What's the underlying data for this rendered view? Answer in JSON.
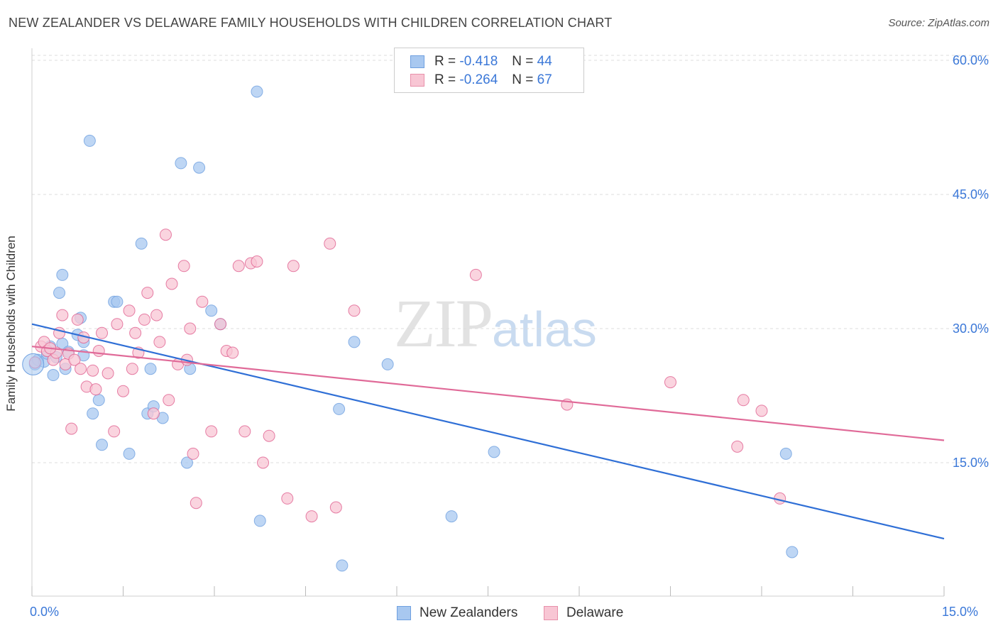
{
  "title": "NEW ZEALANDER VS DELAWARE FAMILY HOUSEHOLDS WITH CHILDREN CORRELATION CHART",
  "source": "Source: ZipAtlas.com",
  "watermark": {
    "zip": "ZIP",
    "atlas": "atlas"
  },
  "legend": {
    "rows": [
      {
        "r_label": "R = ",
        "r_value": "-0.418",
        "n_label": "N = ",
        "n_value": "44",
        "color": "#a8c8f0",
        "border": "#6fa0e0"
      },
      {
        "r_label": "R = ",
        "r_value": "-0.264",
        "n_label": "N = ",
        "n_value": "67",
        "color": "#f8c6d4",
        "border": "#e890aa"
      }
    ]
  },
  "bottom_legend": [
    {
      "label": "New Zealanders",
      "color": "#a8c8f0",
      "border": "#6fa0e0"
    },
    {
      "label": "Delaware",
      "color": "#f8c6d4",
      "border": "#e890aa"
    }
  ],
  "x_tick_labels": {
    "left": "0.0%",
    "right": "15.0%"
  },
  "chart_data": {
    "type": "scatter",
    "title": "NEW ZEALANDER VS DELAWARE FAMILY HOUSEHOLDS WITH CHILDREN CORRELATION CHART",
    "xlabel": "",
    "ylabel": "Family Households with Children",
    "xlim": [
      0,
      15
    ],
    "ylim": [
      0,
      63
    ],
    "y_ticks": [
      15,
      30,
      45,
      60
    ],
    "y_tick_labels": [
      "15.0%",
      "30.0%",
      "45.0%",
      "60.0%"
    ],
    "grid": "horizontal dashed",
    "legend_position": "top-center",
    "series": [
      {
        "name": "New Zealanders",
        "color": "#6fa0e0",
        "fill": "#a8c8f0",
        "trend": {
          "x": [
            0,
            15
          ],
          "y": [
            30.5,
            6.5
          ]
        },
        "points": [
          [
            0.05,
            26.0
          ],
          [
            0.1,
            26.5
          ],
          [
            0.2,
            26.3
          ],
          [
            0.25,
            27.2
          ],
          [
            0.3,
            28.0
          ],
          [
            0.35,
            24.8
          ],
          [
            0.4,
            26.8
          ],
          [
            0.5,
            28.3
          ],
          [
            0.55,
            25.5
          ],
          [
            0.6,
            27.4
          ],
          [
            0.45,
            34.0
          ],
          [
            0.5,
            36.0
          ],
          [
            0.75,
            29.3
          ],
          [
            0.8,
            31.2
          ],
          [
            0.85,
            28.5
          ],
          [
            0.85,
            27.0
          ],
          [
            1.0,
            20.5
          ],
          [
            1.1,
            22.0
          ],
          [
            1.15,
            17.0
          ],
          [
            1.35,
            33.0
          ],
          [
            1.4,
            33.0
          ],
          [
            1.6,
            16.0
          ],
          [
            1.8,
            39.5
          ],
          [
            1.9,
            20.5
          ],
          [
            1.95,
            25.5
          ],
          [
            2.0,
            21.3
          ],
          [
            2.15,
            20.0
          ],
          [
            2.45,
            48.5
          ],
          [
            2.75,
            48.0
          ],
          [
            2.55,
            15.0
          ],
          [
            2.6,
            25.5
          ],
          [
            2.95,
            32.0
          ],
          [
            3.1,
            30.5
          ],
          [
            3.7,
            56.5
          ],
          [
            3.75,
            8.5
          ],
          [
            5.05,
            21.0
          ],
          [
            5.1,
            3.5
          ],
          [
            5.3,
            28.5
          ],
          [
            5.85,
            26.0
          ],
          [
            6.9,
            9.0
          ],
          [
            7.6,
            16.2
          ],
          [
            0.95,
            51.0
          ],
          [
            12.4,
            16.0
          ],
          [
            12.5,
            5.0
          ]
        ]
      },
      {
        "name": "Delaware",
        "color": "#e06090",
        "fill": "#f8c6d4",
        "trend": {
          "x": [
            0,
            15
          ],
          "y": [
            28.0,
            17.5
          ]
        },
        "points": [
          [
            0.05,
            26.2
          ],
          [
            0.15,
            28.0
          ],
          [
            0.2,
            28.5
          ],
          [
            0.25,
            27.5
          ],
          [
            0.35,
            26.5
          ],
          [
            0.4,
            27.3
          ],
          [
            0.45,
            29.5
          ],
          [
            0.5,
            31.5
          ],
          [
            0.55,
            26.0
          ],
          [
            0.6,
            27.2
          ],
          [
            0.7,
            26.5
          ],
          [
            0.75,
            31.0
          ],
          [
            0.8,
            25.5
          ],
          [
            0.85,
            29.0
          ],
          [
            0.9,
            23.5
          ],
          [
            1.0,
            25.3
          ],
          [
            1.1,
            27.5
          ],
          [
            1.15,
            29.5
          ],
          [
            1.35,
            18.5
          ],
          [
            1.4,
            30.5
          ],
          [
            1.5,
            23.0
          ],
          [
            1.6,
            32.0
          ],
          [
            1.65,
            25.5
          ],
          [
            1.7,
            29.5
          ],
          [
            1.75,
            27.3
          ],
          [
            1.85,
            31.0
          ],
          [
            1.9,
            34.0
          ],
          [
            2.0,
            20.5
          ],
          [
            2.1,
            28.5
          ],
          [
            2.2,
            40.5
          ],
          [
            2.25,
            22.0
          ],
          [
            2.3,
            35.0
          ],
          [
            2.4,
            26.0
          ],
          [
            2.5,
            37.0
          ],
          [
            2.55,
            26.5
          ],
          [
            2.6,
            30.0
          ],
          [
            2.65,
            16.0
          ],
          [
            2.7,
            10.5
          ],
          [
            2.8,
            33.0
          ],
          [
            2.95,
            18.5
          ],
          [
            3.1,
            30.5
          ],
          [
            3.2,
            27.5
          ],
          [
            3.3,
            27.3
          ],
          [
            3.4,
            37.0
          ],
          [
            3.5,
            18.5
          ],
          [
            3.6,
            37.3
          ],
          [
            3.7,
            37.5
          ],
          [
            3.8,
            15.0
          ],
          [
            3.9,
            18.0
          ],
          [
            4.2,
            11.0
          ],
          [
            4.3,
            37.0
          ],
          [
            4.6,
            9.0
          ],
          [
            4.9,
            39.5
          ],
          [
            5.0,
            10.0
          ],
          [
            5.3,
            32.0
          ],
          [
            7.3,
            36.0
          ],
          [
            8.8,
            21.5
          ],
          [
            10.5,
            24.0
          ],
          [
            11.6,
            16.8
          ],
          [
            11.7,
            22.0
          ],
          [
            12.0,
            20.8
          ],
          [
            12.3,
            11.0
          ],
          [
            0.3,
            27.8
          ],
          [
            1.05,
            23.2
          ],
          [
            1.25,
            25.0
          ],
          [
            0.65,
            18.8
          ],
          [
            2.05,
            31.5
          ]
        ]
      }
    ]
  }
}
